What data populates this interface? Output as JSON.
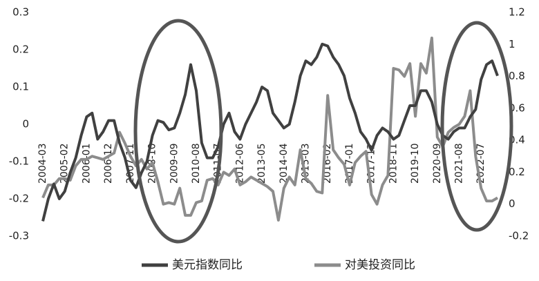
{
  "chart_data": {
    "type": "line",
    "categories": [
      "2004-03",
      null,
      null,
      null,
      "2005-02",
      null,
      null,
      null,
      "2006-01",
      null,
      null,
      null,
      "2006-12",
      null,
      null,
      null,
      "2007-11",
      null,
      null,
      null,
      "2008-10",
      null,
      null,
      null,
      "2009-09",
      null,
      null,
      null,
      "2010-08",
      null,
      null,
      null,
      "2011-07",
      null,
      null,
      null,
      "2012-06",
      null,
      null,
      null,
      "2013-05",
      null,
      null,
      null,
      "2014-04",
      null,
      null,
      null,
      "2015-03",
      null,
      null,
      null,
      "2016-02",
      null,
      null,
      null,
      "2017-01",
      null,
      null,
      null,
      "2017-12",
      null,
      null,
      null,
      "2018-11",
      null,
      null,
      null,
      "2019-10",
      null,
      null,
      null,
      "2020-09",
      null,
      null,
      null,
      "2021-08",
      null,
      null,
      null,
      "2022-07",
      null,
      null,
      null
    ],
    "series": [
      {
        "name": "美元指数同比",
        "color": "#404040",
        "axis": "y",
        "values": [
          -0.26,
          -0.2,
          -0.16,
          -0.2,
          -0.18,
          -0.13,
          -0.09,
          -0.03,
          0.02,
          0.03,
          -0.04,
          -0.02,
          0.01,
          0.01,
          -0.05,
          -0.09,
          -0.15,
          -0.17,
          -0.13,
          -0.1,
          -0.03,
          0.01,
          0.005,
          -0.015,
          -0.01,
          0.03,
          0.08,
          0.16,
          0.09,
          -0.05,
          -0.09,
          -0.09,
          -0.06,
          0.0,
          0.03,
          -0.02,
          -0.04,
          0.0,
          0.03,
          0.06,
          0.1,
          0.09,
          0.03,
          0.01,
          -0.01,
          0.0,
          0.06,
          0.13,
          0.17,
          0.16,
          0.18,
          0.215,
          0.21,
          0.18,
          0.16,
          0.13,
          0.07,
          0.03,
          -0.02,
          -0.04,
          -0.07,
          -0.03,
          -0.01,
          -0.02,
          -0.04,
          -0.03,
          0.01,
          0.05,
          0.05,
          0.09,
          0.09,
          0.06,
          0.0,
          -0.03,
          -0.04,
          -0.02,
          -0.01,
          -0.01,
          0.02,
          0.04,
          0.12,
          0.16,
          0.17,
          0.13
        ]
      },
      {
        "name": "对美投资同比",
        "color": "#8c8c8c",
        "axis": "y2",
        "values": [
          0.04,
          0.12,
          0.12,
          0.16,
          0.16,
          0.15,
          0.24,
          0.28,
          0.28,
          0.3,
          0.29,
          0.28,
          0.3,
          0.32,
          0.45,
          0.38,
          0.3,
          0.24,
          0.28,
          0.22,
          0.26,
          0.14,
          0.0,
          0.01,
          0.0,
          0.1,
          -0.07,
          -0.07,
          0.01,
          0.02,
          0.15,
          0.16,
          0.12,
          0.2,
          0.18,
          0.22,
          0.12,
          0.14,
          0.17,
          0.15,
          0.13,
          0.11,
          0.08,
          -0.1,
          0.1,
          0.17,
          0.12,
          0.34,
          0.16,
          0.13,
          0.08,
          0.07,
          0.68,
          0.34,
          0.29,
          0.25,
          0.12,
          0.26,
          0.3,
          0.33,
          0.06,
          0.0,
          0.12,
          0.18,
          0.85,
          0.84,
          0.8,
          0.88,
          0.55,
          0.88,
          0.82,
          1.04,
          0.42,
          0.36,
          0.45,
          0.48,
          0.5,
          0.55,
          0.71,
          0.3,
          0.1,
          0.02,
          0.02,
          0.04
        ]
      }
    ],
    "ylim": [
      -0.3,
      0.3
    ],
    "yticks": [
      -0.3,
      -0.2,
      -0.1,
      0,
      0.1,
      0.2,
      0.3
    ],
    "y2lim": [
      -0.2,
      1.2
    ],
    "y2ticks": [
      -0.2,
      0,
      0.2,
      0.4,
      0.6,
      0.8,
      1,
      1.2
    ],
    "grid": false
  }
}
